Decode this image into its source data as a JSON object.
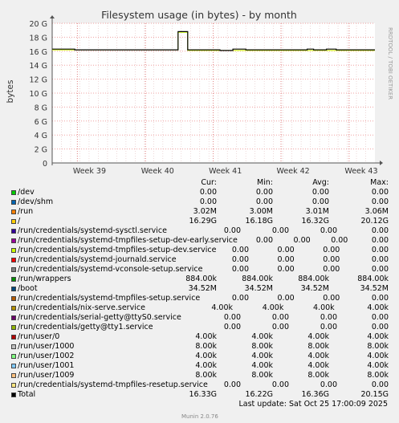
{
  "chart_data": {
    "type": "line",
    "title": "Filesystem usage (in bytes) - by month",
    "ylabel": "bytes",
    "ylim": [
      0,
      20
    ],
    "yticks": [
      "0",
      "2 G",
      "4 G",
      "6 G",
      "8 G",
      "10 G",
      "12 G",
      "14 G",
      "16 G",
      "18 G",
      "20 G"
    ],
    "xticks": [
      "Week 39",
      "Week 40",
      "Week 41",
      "Week 42",
      "Week 43"
    ],
    "side_label": "RRDTOOL / TOBI OETIKER",
    "series": [
      {
        "name": "Total",
        "color": "#000000",
        "points": [
          [
            0,
            16.3
          ],
          [
            0.07,
            16.3
          ],
          [
            0.07,
            16.2
          ],
          [
            0.39,
            16.2
          ],
          [
            0.39,
            18.8
          ],
          [
            0.42,
            18.8
          ],
          [
            0.42,
            16.2
          ],
          [
            0.52,
            16.2
          ],
          [
            0.52,
            16.1
          ],
          [
            0.56,
            16.1
          ],
          [
            0.56,
            16.3
          ],
          [
            0.6,
            16.3
          ],
          [
            0.6,
            16.2
          ],
          [
            0.79,
            16.2
          ],
          [
            0.79,
            16.3
          ],
          [
            0.81,
            16.3
          ],
          [
            0.81,
            16.2
          ],
          [
            0.85,
            16.2
          ],
          [
            0.85,
            16.3
          ],
          [
            0.88,
            16.3
          ],
          [
            0.88,
            16.2
          ],
          [
            1.0,
            16.2
          ]
        ]
      },
      {
        "name": "/",
        "color": "#ccff00",
        "points": [
          [
            0,
            16.2
          ],
          [
            0.39,
            16.2
          ],
          [
            0.39,
            18.7
          ],
          [
            0.42,
            18.7
          ],
          [
            0.42,
            16.1
          ],
          [
            1.0,
            16.1
          ]
        ]
      }
    ]
  },
  "legend": {
    "headers": [
      "Cur:",
      "Min:",
      "Avg:",
      "Max:"
    ],
    "rows": [
      {
        "name": "/dev",
        "color": "#00cc00",
        "cur": "0.00",
        "min": "0.00",
        "avg": "0.00",
        "max": "0.00"
      },
      {
        "name": "/dev/shm",
        "color": "#0066b3",
        "cur": "0.00",
        "min": "0.00",
        "avg": "0.00",
        "max": "0.00"
      },
      {
        "name": "/run",
        "color": "#ff8000",
        "cur": "3.02M",
        "min": "3.00M",
        "avg": "3.01M",
        "max": "3.06M"
      },
      {
        "name": "/",
        "color": "#ffcc00",
        "cur": "16.29G",
        "min": "16.18G",
        "avg": "16.32G",
        "max": "20.12G"
      },
      {
        "name": "/run/credentials/systemd-sysctl.service",
        "color": "#330099",
        "cur": "0.00",
        "min": "0.00",
        "avg": "0.00",
        "max": "0.00"
      },
      {
        "name": "/run/credentials/systemd-tmpfiles-setup-dev-early.service",
        "color": "#990099",
        "cur": "0.00",
        "min": "0.00",
        "avg": "0.00",
        "max": "0.00"
      },
      {
        "name": "/run/credentials/systemd-tmpfiles-setup-dev.service",
        "color": "#ccff00",
        "cur": "0.00",
        "min": "0.00",
        "avg": "0.00",
        "max": "0.00"
      },
      {
        "name": "/run/credentials/systemd-journald.service",
        "color": "#ff0000",
        "cur": "0.00",
        "min": "0.00",
        "avg": "0.00",
        "max": "0.00"
      },
      {
        "name": "/run/credentials/systemd-vconsole-setup.service",
        "color": "#808080",
        "cur": "0.00",
        "min": "0.00",
        "avg": "0.00",
        "max": "0.00"
      },
      {
        "name": "/run/wrappers",
        "color": "#008f00",
        "cur": "884.00k",
        "min": "884.00k",
        "avg": "884.00k",
        "max": "884.00k"
      },
      {
        "name": "/boot",
        "color": "#00487d",
        "cur": "34.52M",
        "min": "34.52M",
        "avg": "34.52M",
        "max": "34.52M"
      },
      {
        "name": "/run/credentials/systemd-tmpfiles-setup.service",
        "color": "#b35a00",
        "cur": "0.00",
        "min": "0.00",
        "avg": "0.00",
        "max": "0.00"
      },
      {
        "name": "/run/credentials/nix-serve.service",
        "color": "#b38f00",
        "cur": "4.00k",
        "min": "4.00k",
        "avg": "4.00k",
        "max": "4.00k"
      },
      {
        "name": "/run/credentials/serial-getty@ttyS0.service",
        "color": "#6b006b",
        "cur": "0.00",
        "min": "0.00",
        "avg": "0.00",
        "max": "0.00"
      },
      {
        "name": "/run/credentials/getty@tty1.service",
        "color": "#8fb300",
        "cur": "0.00",
        "min": "0.00",
        "avg": "0.00",
        "max": "0.00"
      },
      {
        "name": "/run/user/0",
        "color": "#b30000",
        "cur": "4.00k",
        "min": "4.00k",
        "avg": "4.00k",
        "max": "4.00k"
      },
      {
        "name": "/run/user/1000",
        "color": "#bebebe",
        "cur": "8.00k",
        "min": "8.00k",
        "avg": "8.00k",
        "max": "8.00k"
      },
      {
        "name": "/run/user/1002",
        "color": "#80ff80",
        "cur": "4.00k",
        "min": "4.00k",
        "avg": "4.00k",
        "max": "4.00k"
      },
      {
        "name": "/run/user/1001",
        "color": "#80c9ff",
        "cur": "4.00k",
        "min": "4.00k",
        "avg": "4.00k",
        "max": "4.00k"
      },
      {
        "name": "/run/user/1009",
        "color": "#ffc080",
        "cur": "8.00k",
        "min": "8.00k",
        "avg": "8.00k",
        "max": "8.00k"
      },
      {
        "name": "/run/credentials/systemd-tmpfiles-resetup.service",
        "color": "#ffe680",
        "cur": "0.00",
        "min": "0.00",
        "avg": "0.00",
        "max": "0.00"
      },
      {
        "name": "Total",
        "color": "#000000",
        "cur": "16.33G",
        "min": "16.22G",
        "avg": "16.36G",
        "max": "20.15G"
      }
    ]
  },
  "footer": {
    "last_update": "Last update: Sat Oct 25 17:00:09 2025",
    "munin": "Munin 2.0.76"
  }
}
